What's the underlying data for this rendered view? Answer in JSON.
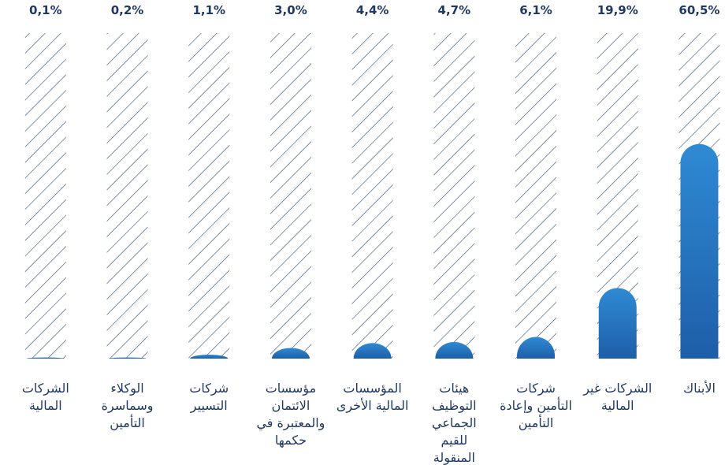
{
  "chart_data": {
    "type": "bar",
    "categories": [
      "الشركات المالية",
      "الوكلاء وسماسرة التأمين",
      "شركات التسيير",
      "مؤسسات الائتمان والمعتبرة في حكمها",
      "المؤسسات المالية الأخرى",
      "هيئات التوظيف الجماعي للقيم المنقولة",
      "شركات التأمين وإعادة التأمين",
      "الشركات غير المالية",
      "الأبناك"
    ],
    "values": [
      0.1,
      0.2,
      1.1,
      3.0,
      4.4,
      4.7,
      6.1,
      19.9,
      60.5
    ],
    "value_labels": [
      "0,1%",
      "0,2%",
      "1,1%",
      "3,0%",
      "4,4%",
      "4,7%",
      "6,1%",
      "19,9%",
      "60,5%"
    ],
    "color": "#2a7dc6"
  }
}
